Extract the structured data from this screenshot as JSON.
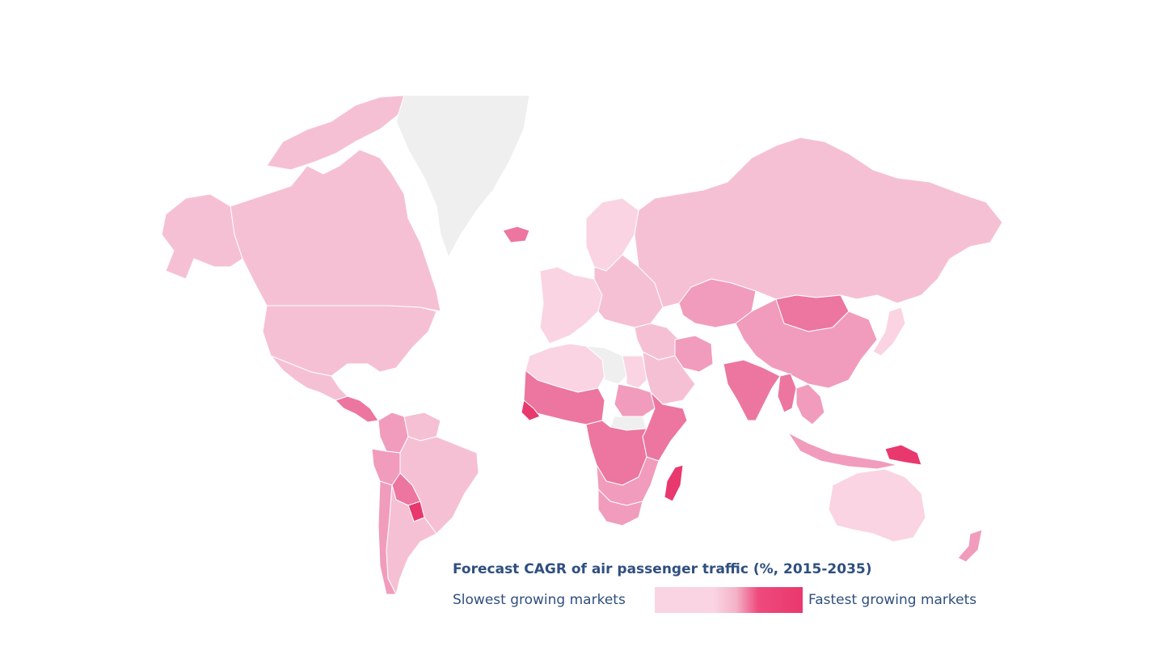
{
  "map": {
    "colors": {
      "no_data": "#efefef",
      "slowest": "#fad4e2",
      "light": "#f6c0d4",
      "medium": "#f19cbc",
      "strong": "#ec76a0",
      "fastest": "#e9386e"
    },
    "regions": [
      {
        "name": "Greenland",
        "level": "no_data"
      },
      {
        "name": "Canada",
        "level": "light"
      },
      {
        "name": "Alaska",
        "level": "light"
      },
      {
        "name": "United States",
        "level": "light"
      },
      {
        "name": "Mexico",
        "level": "light"
      },
      {
        "name": "Central America",
        "level": "strong"
      },
      {
        "name": "Colombia",
        "level": "medium"
      },
      {
        "name": "Venezuela",
        "level": "light"
      },
      {
        "name": "Peru",
        "level": "medium"
      },
      {
        "name": "Brazil",
        "level": "light"
      },
      {
        "name": "Bolivia",
        "level": "strong"
      },
      {
        "name": "Paraguay",
        "level": "fastest"
      },
      {
        "name": "Argentina",
        "level": "light"
      },
      {
        "name": "Chile",
        "level": "medium"
      },
      {
        "name": "Iceland",
        "level": "strong"
      },
      {
        "name": "Scandinavia",
        "level": "slowest"
      },
      {
        "name": "Western Europe",
        "level": "slowest"
      },
      {
        "name": "Eastern Europe",
        "level": "light"
      },
      {
        "name": "Russia",
        "level": "light"
      },
      {
        "name": "Kazakhstan",
        "level": "medium"
      },
      {
        "name": "Mongolia",
        "level": "strong"
      },
      {
        "name": "China",
        "level": "medium"
      },
      {
        "name": "Japan",
        "level": "slowest"
      },
      {
        "name": "India",
        "level": "strong"
      },
      {
        "name": "Myanmar",
        "level": "strong"
      },
      {
        "name": "Southeast Asia",
        "level": "medium"
      },
      {
        "name": "Indonesia",
        "level": "medium"
      },
      {
        "name": "Papua New Guinea",
        "level": "fastest"
      },
      {
        "name": "Australia",
        "level": "slowest"
      },
      {
        "name": "New Zealand",
        "level": "medium"
      },
      {
        "name": "Middle East",
        "level": "light"
      },
      {
        "name": "Iran",
        "level": "medium"
      },
      {
        "name": "Saudi Arabia",
        "level": "light"
      },
      {
        "name": "North Africa",
        "level": "slowest"
      },
      {
        "name": "Libya",
        "level": "no_data"
      },
      {
        "name": "West Africa",
        "level": "strong"
      },
      {
        "name": "Guinea",
        "level": "fastest"
      },
      {
        "name": "Sudan",
        "level": "medium"
      },
      {
        "name": "South Sudan",
        "level": "no_data"
      },
      {
        "name": "East Africa",
        "level": "strong"
      },
      {
        "name": "Central Africa",
        "level": "strong"
      },
      {
        "name": "Southern Africa",
        "level": "medium"
      },
      {
        "name": "South Africa",
        "level": "medium"
      },
      {
        "name": "Madagascar",
        "level": "fastest"
      }
    ]
  },
  "legend": {
    "title": "Forecast CAGR of air passenger traffic (%, 2015-2035)",
    "low_label": "Slowest growing markets",
    "high_label": "Fastest growing markets",
    "gradient_stops": [
      "#fad4e2",
      "#fad4e2",
      "#f4b2c8",
      "#ee4a7d",
      "#e9386e"
    ]
  }
}
